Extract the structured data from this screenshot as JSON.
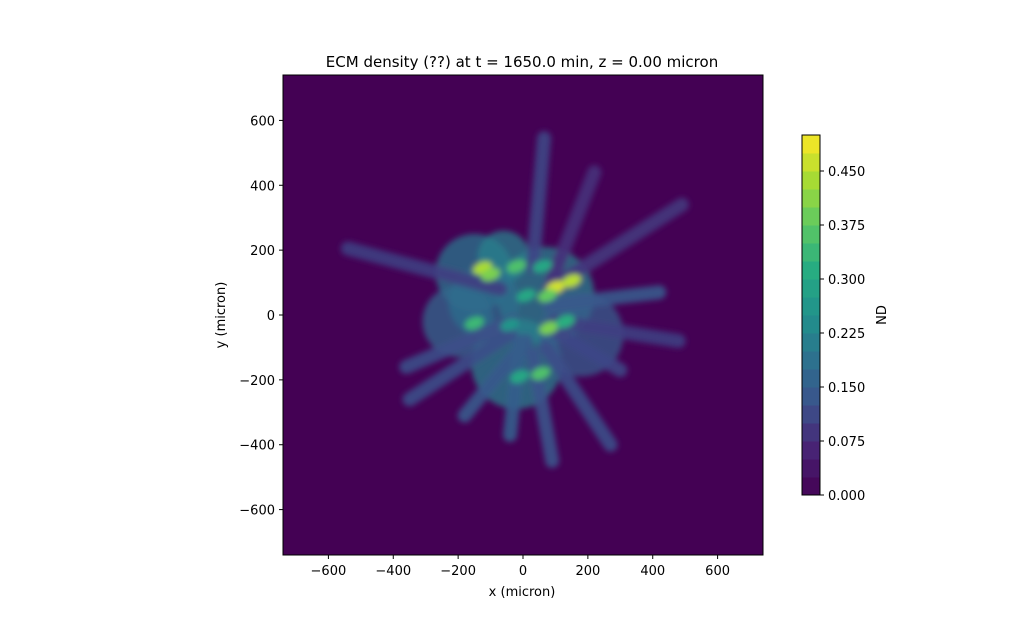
{
  "chart_data": {
    "type": "heatmap",
    "title": "ECM density (??) at t = 1650.0 min, z = 0.00 micron",
    "xlabel": "x (micron)",
    "ylabel": "y (micron)",
    "xlim": [
      -740,
      740
    ],
    "ylim": [
      -740,
      740
    ],
    "x_ticks": [
      -600,
      -400,
      -200,
      0,
      200,
      400,
      600
    ],
    "y_ticks": [
      -600,
      -400,
      -200,
      0,
      200,
      400,
      600
    ],
    "x_tick_labels": [
      "−600",
      "−400",
      "−200",
      "0",
      "200",
      "400",
      "600"
    ],
    "y_tick_labels": [
      "−600",
      "−400",
      "−200",
      "0",
      "200",
      "400",
      "600"
    ],
    "colorbar": {
      "label": "ND",
      "range": [
        0.0,
        0.5
      ],
      "ticks": [
        0.0,
        0.075,
        0.15,
        0.225,
        0.3,
        0.375,
        0.45
      ],
      "tick_labels": [
        "0.000",
        "0.075",
        "0.150",
        "0.225",
        "0.300",
        "0.375",
        "0.450"
      ],
      "levels": 20,
      "colormap": "viridis"
    },
    "background_value": 0.0,
    "strands": [
      {
        "from": [
          -540,
          205
        ],
        "to": [
          -70,
          80
        ],
        "value": 0.1
      },
      {
        "from": [
          490,
          340
        ],
        "to": [
          80,
          80
        ],
        "value": 0.09
      },
      {
        "from": [
          65,
          545
        ],
        "to": [
          30,
          150
        ],
        "value": 0.11
      },
      {
        "from": [
          220,
          440
        ],
        "to": [
          90,
          110
        ],
        "value": 0.08
      },
      {
        "from": [
          -350,
          -260
        ],
        "to": [
          -40,
          -60
        ],
        "value": 0.12
      },
      {
        "from": [
          -360,
          -160
        ],
        "to": [
          -30,
          -20
        ],
        "value": 0.12
      },
      {
        "from": [
          -180,
          -310
        ],
        "to": [
          10,
          -80
        ],
        "value": 0.14
      },
      {
        "from": [
          90,
          -450
        ],
        "to": [
          30,
          -120
        ],
        "value": 0.13
      },
      {
        "from": [
          270,
          -400
        ],
        "to": [
          70,
          -100
        ],
        "value": 0.12
      },
      {
        "from": [
          300,
          -170
        ],
        "to": [
          80,
          -40
        ],
        "value": 0.11
      },
      {
        "from": [
          480,
          -80
        ],
        "to": [
          100,
          -20
        ],
        "value": 0.1
      },
      {
        "from": [
          420,
          70
        ],
        "to": [
          80,
          30
        ],
        "value": 0.14
      },
      {
        "from": [
          -40,
          -370
        ],
        "to": [
          -10,
          -80
        ],
        "value": 0.15
      }
    ],
    "blobs": [
      {
        "x": -150,
        "y": 130,
        "r": 120,
        "value": 0.2
      },
      {
        "x": -60,
        "y": 180,
        "r": 80,
        "value": 0.22
      },
      {
        "x": 70,
        "y": 60,
        "r": 150,
        "value": 0.22
      },
      {
        "x": -20,
        "y": -150,
        "r": 140,
        "value": 0.22
      },
      {
        "x": -200,
        "y": -20,
        "r": 110,
        "value": 0.17
      },
      {
        "x": 180,
        "y": -60,
        "r": 130,
        "value": 0.15
      },
      {
        "x": -120,
        "y": 40,
        "r": 110,
        "value": 0.18
      }
    ],
    "hotspots": [
      {
        "x": -125,
        "y": 145,
        "value": 0.44
      },
      {
        "x": -100,
        "y": 125,
        "value": 0.4
      },
      {
        "x": -20,
        "y": 150,
        "value": 0.36
      },
      {
        "x": 100,
        "y": 85,
        "value": 0.47
      },
      {
        "x": 150,
        "y": 105,
        "value": 0.45
      },
      {
        "x": 75,
        "y": 60,
        "value": 0.38
      },
      {
        "x": 10,
        "y": 60,
        "value": 0.3
      },
      {
        "x": -150,
        "y": -25,
        "value": 0.34
      },
      {
        "x": 80,
        "y": -40,
        "value": 0.4
      },
      {
        "x": 130,
        "y": -20,
        "value": 0.32
      },
      {
        "x": 55,
        "y": -180,
        "value": 0.36
      },
      {
        "x": -10,
        "y": -190,
        "value": 0.3
      },
      {
        "x": 60,
        "y": 150,
        "value": 0.3
      },
      {
        "x": -40,
        "y": -30,
        "value": 0.26
      }
    ]
  }
}
